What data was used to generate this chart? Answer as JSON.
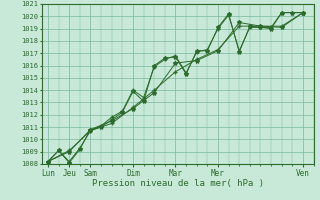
{
  "title": "",
  "xlabel": "Pression niveau de la mer( hPa )",
  "ylabel": "",
  "bg_color": "#c8e8d8",
  "grid_color": "#7ab89a",
  "line_color": "#2d6a2d",
  "ylim": [
    1008,
    1021
  ],
  "yticks": [
    1008,
    1009,
    1010,
    1011,
    1012,
    1013,
    1014,
    1015,
    1016,
    1017,
    1018,
    1019,
    1020,
    1021
  ],
  "major_day_labels": [
    "Lun",
    "Jeu",
    "Sam",
    "Dim",
    "Mar",
    "Mer",
    "Ven"
  ],
  "major_day_positions": [
    0,
    1,
    2,
    4,
    6,
    8,
    12
  ],
  "series1_x": [
    0,
    0.5,
    1.0,
    1.5,
    2.0,
    2.5,
    3.0,
    3.5,
    4.0,
    4.5,
    5.0,
    5.5,
    6.0,
    6.5,
    7.0,
    7.5,
    8.0,
    8.5,
    9.0,
    9.5,
    10.0,
    10.5,
    11.0,
    11.5,
    12.0
  ],
  "series1_y": [
    1008.2,
    1009.1,
    1008.1,
    1009.2,
    1010.8,
    1011.0,
    1011.6,
    1012.2,
    1013.9,
    1013.1,
    1016.0,
    1016.6,
    1016.7,
    1015.3,
    1017.2,
    1017.2,
    1019.1,
    1020.2,
    1017.1,
    1019.2,
    1019.1,
    1019.0,
    1020.3,
    1020.3,
    1020.3
  ],
  "series2_x": [
    0,
    0.5,
    1.0,
    1.5,
    2.0,
    2.5,
    3.0,
    3.5,
    4.0,
    4.5,
    5.0,
    5.5,
    6.0,
    6.5,
    7.0,
    7.5,
    8.0,
    8.5,
    9.0,
    9.5,
    10.0,
    10.5,
    11.0,
    11.5,
    12.0
  ],
  "series2_y": [
    1008.2,
    1009.1,
    1008.2,
    1009.3,
    1010.7,
    1011.1,
    1011.8,
    1012.3,
    1014.0,
    1013.4,
    1015.9,
    1016.5,
    1016.8,
    1015.4,
    1017.1,
    1017.3,
    1019.0,
    1020.1,
    1017.2,
    1019.1,
    1019.1,
    1019.1,
    1020.3,
    1020.3,
    1020.3
  ],
  "series3_x": [
    0,
    1.0,
    2.0,
    3.0,
    4.0,
    5.0,
    6.0,
    7.0,
    8.0,
    9.0,
    10.0,
    11.0,
    12.0
  ],
  "series3_y": [
    1008.2,
    1009.0,
    1010.8,
    1011.5,
    1012.5,
    1013.8,
    1016.2,
    1016.4,
    1017.2,
    1019.5,
    1019.2,
    1019.1,
    1020.3
  ],
  "series4_x": [
    0,
    1.0,
    2.0,
    3.0,
    4.0,
    5.0,
    6.0,
    7.0,
    8.0,
    9.0,
    10.0,
    11.0,
    12.0
  ],
  "series4_y": [
    1008.2,
    1009.1,
    1010.7,
    1011.3,
    1012.6,
    1014.0,
    1015.5,
    1016.5,
    1017.3,
    1019.2,
    1019.2,
    1019.2,
    1020.3
  ]
}
